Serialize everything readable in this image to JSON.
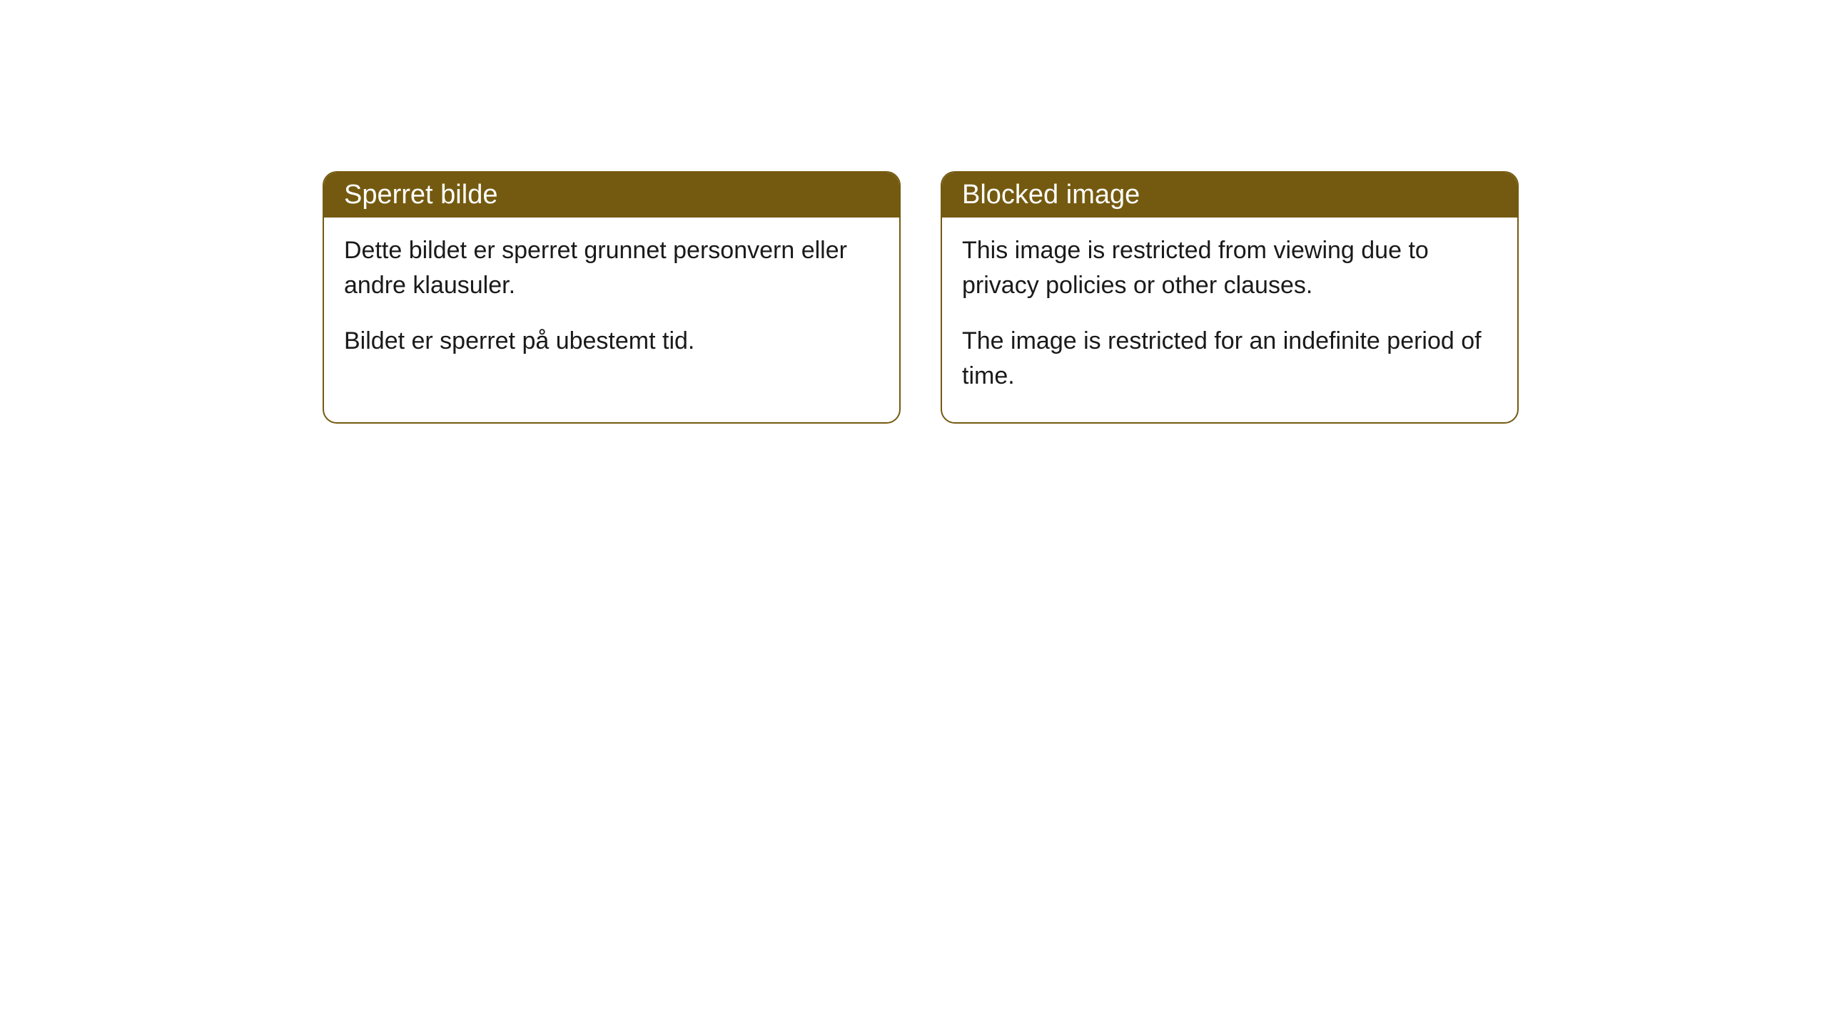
{
  "cards": [
    {
      "title": "Sperret bilde",
      "paragraph1": "Dette bildet er sperret grunnet personvern eller andre klausuler.",
      "paragraph2": "Bildet er sperret på ubestemt tid."
    },
    {
      "title": "Blocked image",
      "paragraph1": "This image is restricted from viewing due to privacy policies or other clauses.",
      "paragraph2": "The image is restricted for an indefinite period of time."
    }
  ],
  "styling": {
    "header_bg_color": "#745a10",
    "header_text_color": "#ffffff",
    "border_color": "#745a10",
    "body_bg_color": "#ffffff",
    "body_text_color": "#1a1a1a",
    "border_radius": 20,
    "title_fontsize": 38,
    "body_fontsize": 34
  }
}
